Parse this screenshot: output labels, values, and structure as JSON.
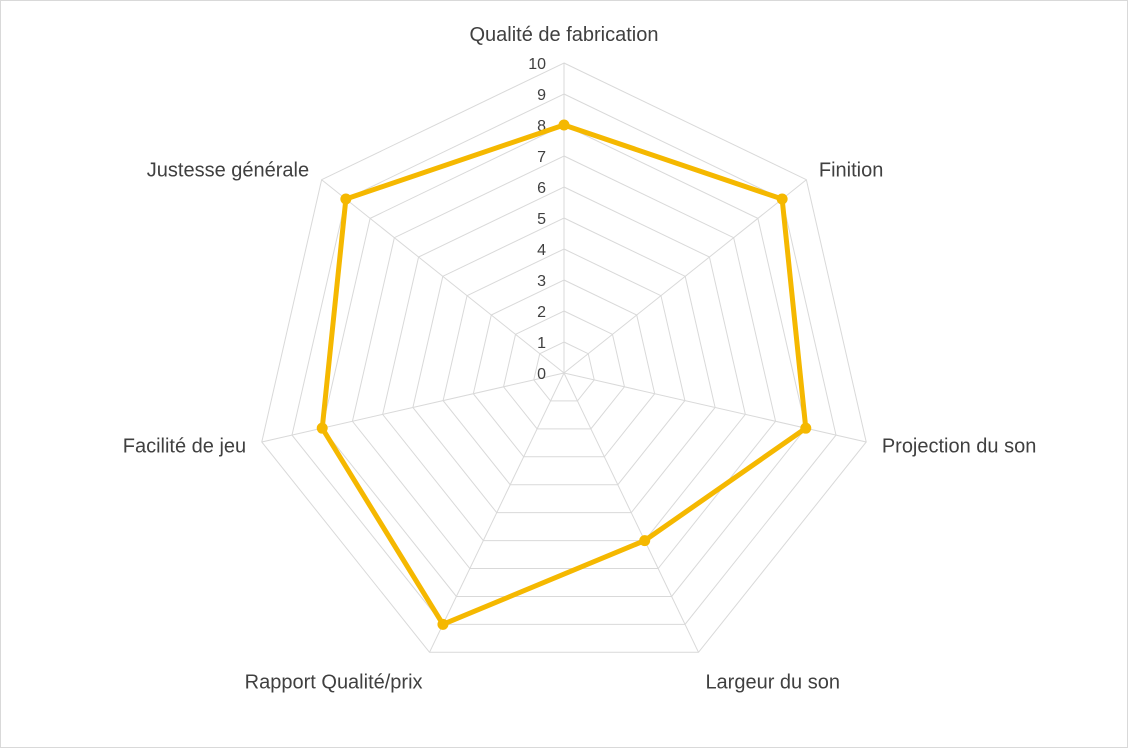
{
  "chart_data": {
    "type": "radar",
    "categories": [
      "Qualité de fabrication",
      "Finition",
      "Projection du son",
      "Largeur du son",
      "Rapport Qualité/prix",
      "Facilité de jeu",
      "Justesse générale"
    ],
    "series": [
      {
        "values": [
          8,
          9,
          8,
          6,
          9,
          8,
          9
        ]
      }
    ],
    "rlim": [
      0,
      10
    ],
    "ticks": [
      "0",
      "1",
      "2",
      "3",
      "4",
      "5",
      "6",
      "7",
      "8",
      "9",
      "10"
    ],
    "grid": true,
    "legend": "none"
  },
  "colors": {
    "series": "#f5b800",
    "grid": "#d9d9d9",
    "text": "#404040"
  }
}
